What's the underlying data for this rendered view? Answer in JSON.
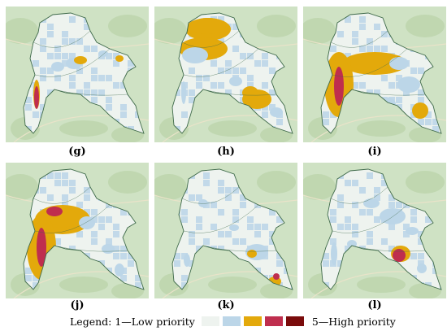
{
  "panels": [
    {
      "label": "(g)",
      "level_colors": [
        "#eef3ef",
        "#bcd6e8",
        "#e3a90b",
        "#bf2e4e",
        "#7a0b0b"
      ]
    },
    {
      "label": "(h)",
      "level_colors": [
        "#eef3ef",
        "#bcd6e8",
        "#e3a90b",
        "#bf2e4e",
        "#7a0b0b"
      ]
    },
    {
      "label": "(i)",
      "level_colors": [
        "#eef3ef",
        "#bcd6e8",
        "#e3a90b",
        "#bf2e4e",
        "#7a0b0b"
      ]
    },
    {
      "label": "(j)",
      "level_colors": [
        "#eef3ef",
        "#bcd6e8",
        "#e3a90b",
        "#bf2e4e",
        "#7a0b0b"
      ]
    },
    {
      "label": "(k)",
      "level_colors": [
        "#eef3ef",
        "#bcd6e8",
        "#e3a90b",
        "#bf2e4e",
        "#7a0b0b"
      ]
    },
    {
      "label": "(l)",
      "level_colors": [
        "#eef3ef",
        "#bcd6e8",
        "#e3a90b",
        "#bf2e4e",
        "#7a0b0b"
      ]
    }
  ],
  "legend": {
    "lead": "Legend: 1—Low priority",
    "tail": "5—High priority",
    "colors": [
      "#eef3ef",
      "#bcd6e8",
      "#e3a90b",
      "#bf2e4e",
      "#7a0b0b"
    ]
  }
}
